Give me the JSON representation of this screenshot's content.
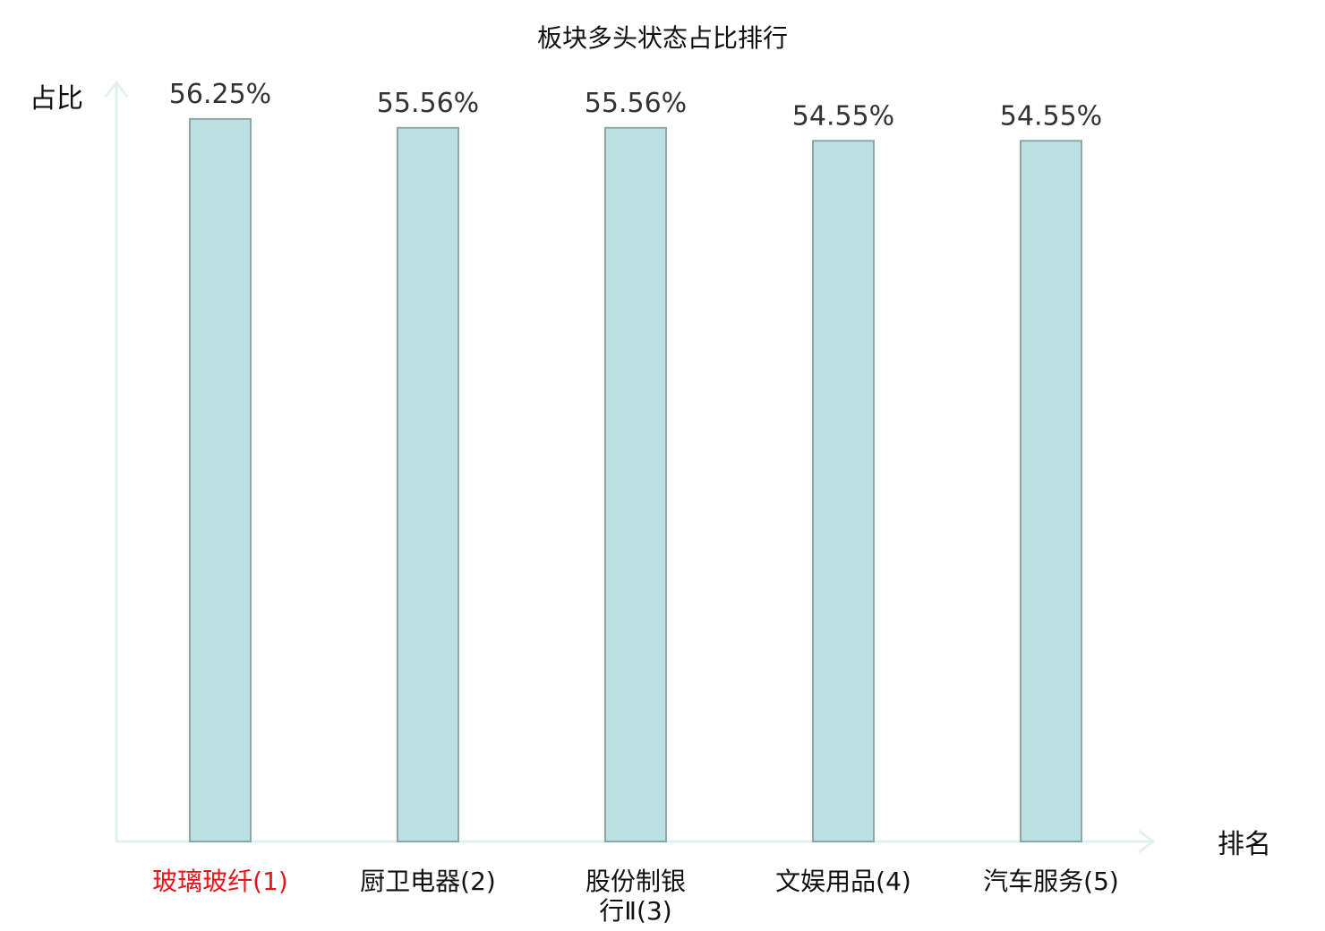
{
  "chart_data": {
    "type": "bar",
    "title": "板块多头状态占比排行",
    "ylabel": "占比",
    "xlabel": "排名",
    "categories": [
      "玻璃玻纤(1)",
      "厨卫电器(2)",
      "股份制银行Ⅱ(3)",
      "文娱用品(4)",
      "汽车服务(5)"
    ],
    "category_lines": [
      [
        "玻璃玻纤(1)"
      ],
      [
        "厨卫电器(2)"
      ],
      [
        "股份制银",
        "行Ⅱ(3)"
      ],
      [
        "文娱用品(4)"
      ],
      [
        "汽车服务(5)"
      ]
    ],
    "values": [
      56.25,
      55.56,
      55.56,
      54.55,
      54.55
    ],
    "data_labels": [
      "56.25%",
      "55.56%",
      "55.56%",
      "54.55%",
      "54.55%"
    ],
    "highlight_index": 0,
    "ylim": [
      0,
      59.1
    ],
    "grid": false,
    "colors": {
      "bar_fill": "#bde1e2",
      "bar_stroke": "#8aa8a8",
      "axis": "#e0f2ef",
      "highlight_label": "#e8141c",
      "label": "#111111",
      "data_label": "#333333"
    }
  }
}
